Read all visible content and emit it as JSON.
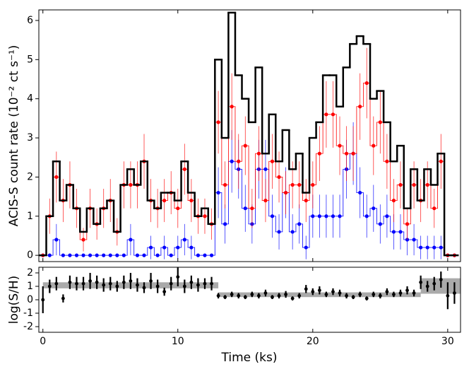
{
  "chart_data": [
    {
      "type": "line",
      "ylabel": "ACIS-S count rate (10⁻² ct s⁻¹)",
      "x": [
        0,
        0.5,
        1,
        1.5,
        2,
        2.5,
        3,
        3.5,
        4,
        4.5,
        5,
        5.5,
        6,
        6.5,
        7,
        7.5,
        8,
        8.5,
        9,
        9.5,
        10,
        10.5,
        11,
        11.5,
        12,
        12.5,
        13,
        13.5,
        14,
        14.5,
        15,
        15.5,
        16,
        16.5,
        17,
        17.5,
        18,
        18.5,
        19,
        19.5,
        20,
        20.5,
        21,
        21.5,
        22,
        22.5,
        23,
        23.5,
        24,
        24.5,
        25,
        25.5,
        26,
        26.5,
        27,
        27.5,
        28,
        28.5,
        29,
        29.5,
        30,
        30.5
      ],
      "xlim": [
        -0.3,
        30.95
      ],
      "ylim": [
        -0.16,
        6.27
      ],
      "yticks": [
        0,
        1,
        2,
        3,
        4,
        5,
        6
      ],
      "series": [
        {
          "color": "#0000ff",
          "width": 0.8,
          "values": [
            0,
            0,
            0.4,
            0,
            0,
            0,
            0,
            0,
            0,
            0,
            0,
            0,
            0,
            0.4,
            0,
            0,
            0.2,
            0,
            0.2,
            0,
            0.2,
            0.4,
            0.2,
            0,
            0,
            0,
            1.6,
            0.8,
            2.4,
            2.2,
            1.2,
            0.8,
            2.2,
            2.2,
            1,
            0.6,
            1.6,
            0.6,
            0.8,
            0.2,
            1,
            1,
            1,
            1,
            1,
            2.2,
            2.6,
            1.6,
            1,
            1.2,
            0.8,
            1,
            0.6,
            0.6,
            0.4,
            0.4,
            0.2,
            0.2,
            0.2,
            0.2,
            0,
            0
          ],
          "errors": [
            0,
            0,
            0.4,
            0,
            0,
            0,
            0,
            0,
            0,
            0,
            0,
            0,
            0,
            0.4,
            0,
            0,
            0.3,
            0,
            0.3,
            0,
            0.3,
            0.4,
            0.3,
            0,
            0,
            0,
            0.65,
            0.5,
            0.8,
            0.75,
            0.6,
            0.5,
            0.75,
            0.75,
            0.55,
            0.45,
            0.65,
            0.45,
            0.5,
            0.3,
            0.55,
            0.55,
            0.55,
            0.55,
            0.55,
            0.75,
            0.8,
            0.65,
            0.55,
            0.6,
            0.5,
            0.55,
            0.45,
            0.45,
            0.4,
            0.4,
            0.3,
            0.3,
            0.3,
            0.3,
            0,
            0
          ]
        },
        {
          "color": "#ff0000",
          "width": 0.8,
          "values": [
            0,
            1,
            2,
            1.4,
            1.8,
            1.2,
            0.4,
            1.2,
            0.8,
            1.2,
            1.4,
            0.6,
            1.8,
            1.8,
            1.8,
            2.4,
            1.4,
            1.2,
            1.4,
            1.6,
            1.2,
            2.2,
            1.4,
            1,
            1,
            0.8,
            3.4,
            1.8,
            3.8,
            2.4,
            2.8,
            1.2,
            2.6,
            1.4,
            2.4,
            2,
            1.6,
            1.8,
            1.8,
            1.4,
            1.8,
            2.6,
            3.6,
            3.6,
            2.8,
            2.6,
            2.6,
            3.8,
            4.4,
            2.8,
            3.4,
            2.4,
            1.4,
            1.8,
            0.8,
            1.8,
            1.4,
            1.8,
            1.2,
            2.4,
            0,
            0
          ],
          "errors": [
            0,
            0.45,
            0.65,
            0.55,
            0.6,
            0.5,
            0.3,
            0.5,
            0.4,
            0.5,
            0.55,
            0.35,
            0.6,
            0.6,
            0.6,
            0.7,
            0.55,
            0.5,
            0.55,
            0.55,
            0.5,
            0.65,
            0.55,
            0.45,
            0.45,
            0.4,
            0.8,
            0.6,
            0.85,
            0.7,
            0.75,
            0.5,
            0.7,
            0.55,
            0.7,
            0.65,
            0.55,
            0.6,
            0.6,
            0.55,
            0.6,
            0.7,
            0.85,
            0.85,
            0.75,
            0.7,
            0.7,
            0.85,
            0.9,
            0.75,
            0.8,
            0.7,
            0.55,
            0.6,
            0.4,
            0.6,
            0.55,
            0.6,
            0.5,
            0.7,
            0,
            0
          ]
        },
        {
          "color": "#000000",
          "width": 2.5,
          "values": [
            0,
            1,
            2.4,
            1.4,
            1.8,
            1.2,
            0.6,
            1.2,
            0.8,
            1.2,
            1.4,
            0.6,
            1.8,
            2.2,
            1.8,
            2.4,
            1.4,
            1.2,
            1.6,
            1.6,
            1.4,
            2.4,
            1.6,
            1,
            1.2,
            0.8,
            5,
            3,
            6.2,
            4.6,
            4,
            3.4,
            4.8,
            2.6,
            3.6,
            2.4,
            3.2,
            2.2,
            2.6,
            1.6,
            3,
            3.4,
            4.6,
            4.6,
            3.8,
            4.8,
            5.4,
            5.6,
            5.4,
            4,
            4.2,
            3.4,
            2.4,
            2.8,
            1.2,
            2.2,
            1.4,
            2.2,
            1.8,
            2.6,
            0,
            0
          ]
        }
      ]
    },
    {
      "type": "scatter",
      "xlabel": "Time (ks)",
      "ylabel": "log(S/H)",
      "x": [
        0,
        0.5,
        1,
        1.5,
        2,
        2.5,
        3,
        3.5,
        4,
        4.5,
        5,
        5.5,
        6,
        6.5,
        7,
        7.5,
        8,
        8.5,
        9,
        9.5,
        10,
        10.5,
        11,
        11.5,
        12,
        12.5,
        13,
        13.5,
        14,
        14.5,
        15,
        15.5,
        16,
        16.5,
        17,
        17.5,
        18,
        18.5,
        19,
        19.5,
        20,
        20.5,
        21,
        21.5,
        22,
        22.5,
        23,
        23.5,
        24,
        24.5,
        25,
        25.5,
        26,
        26.5,
        27,
        27.5,
        28,
        28.5,
        29,
        29.5,
        30,
        30.5
      ],
      "values": [
        0,
        1,
        1.2,
        0.1,
        1.3,
        1.2,
        1.2,
        1.4,
        1.3,
        1.1,
        1.2,
        1,
        1.3,
        1.4,
        1.1,
        0.9,
        1.4,
        1,
        0.6,
        1.2,
        1.7,
        1,
        1.3,
        1.1,
        1.2,
        1.2,
        0.3,
        0.2,
        0.4,
        0.3,
        0.2,
        0.4,
        0.3,
        0.5,
        0.2,
        0.3,
        0.4,
        0.1,
        0.3,
        0.8,
        0.6,
        0.7,
        0.4,
        0.6,
        0.5,
        0.3,
        0.2,
        0.4,
        0.1,
        0.4,
        0.3,
        0.6,
        0.4,
        0.5,
        0.7,
        0.5,
        1.3,
        1,
        1.2,
        1.5,
        0.3,
        0.5
      ],
      "errors": [
        1,
        0.5,
        0.5,
        0.3,
        0.5,
        0.5,
        0.5,
        0.6,
        0.5,
        0.5,
        0.5,
        0.4,
        0.5,
        0.6,
        0.5,
        0.4,
        0.6,
        0.5,
        0.3,
        0.5,
        0.7,
        0.5,
        0.5,
        0.5,
        0.4,
        0.5,
        0.2,
        0.15,
        0.2,
        0.2,
        0.15,
        0.2,
        0.2,
        0.25,
        0.15,
        0.2,
        0.25,
        0.15,
        0.2,
        0.3,
        0.25,
        0.3,
        0.2,
        0.25,
        0.25,
        0.2,
        0.15,
        0.2,
        0.15,
        0.2,
        0.2,
        0.25,
        0.2,
        0.25,
        0.3,
        0.25,
        0.5,
        0.4,
        0.5,
        0.6,
        1,
        0.8
      ],
      "color": "#000000",
      "bands": [
        {
          "xlim": [
            0,
            13
          ],
          "ylim": [
            0.85,
            1.3
          ]
        },
        {
          "xlim": [
            13,
            28
          ],
          "ylim": [
            0.2,
            0.55
          ]
        },
        {
          "xlim": [
            28,
            30.95
          ],
          "ylim": [
            0.45,
            1.6
          ]
        }
      ],
      "band_color": "#aaaaaa",
      "xlim": [
        -0.3,
        30.95
      ],
      "ylim": [
        -2.42,
        2.42
      ],
      "xticks": [
        0,
        10,
        20,
        30
      ],
      "yticks": [
        -2,
        -1,
        0,
        1,
        2
      ]
    }
  ]
}
